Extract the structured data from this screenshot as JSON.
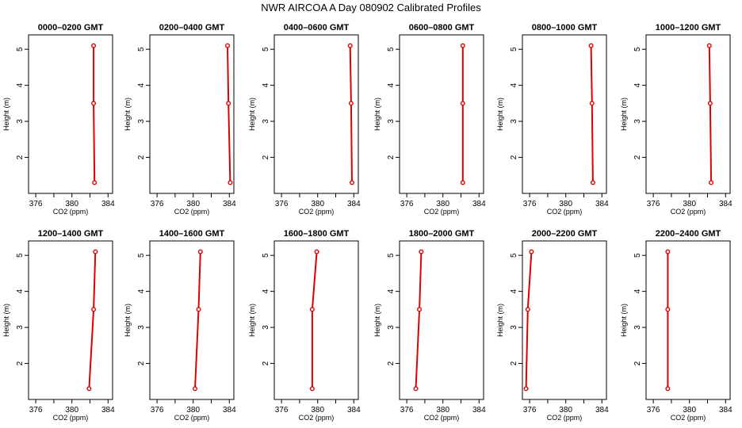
{
  "page": {
    "title": "NWR AIRCOA A  Day 080902  Calibrated Profiles"
  },
  "chart_data": [
    {
      "type": "line",
      "title": "0000–0200 GMT",
      "xlabel": "CO2 (ppm)",
      "ylabel": "Height (m)",
      "xlim": [
        375.2,
        384.5
      ],
      "ylim": [
        1.0,
        5.4
      ],
      "xticks": [
        376,
        380,
        384
      ],
      "yticks": [
        2,
        3,
        4,
        5
      ],
      "series": [
        {
          "x": [
            382.4,
            382.4,
            382.5
          ],
          "y": [
            5.1,
            3.5,
            1.3
          ]
        }
      ],
      "color": "#dd0000"
    },
    {
      "type": "line",
      "title": "0200–0400 GMT",
      "xlabel": "CO2 (ppm)",
      "ylabel": "Height (m)",
      "xlim": [
        375.2,
        384.5
      ],
      "ylim": [
        1.0,
        5.4
      ],
      "xticks": [
        376,
        380,
        384
      ],
      "yticks": [
        2,
        3,
        4,
        5
      ],
      "series": [
        {
          "x": [
            383.8,
            383.9,
            384.1
          ],
          "y": [
            5.1,
            3.5,
            1.3
          ]
        }
      ],
      "color": "#dd0000"
    },
    {
      "type": "line",
      "title": "0400–0600 GMT",
      "xlabel": "CO2 (ppm)",
      "ylabel": "Height (m)",
      "xlim": [
        375.2,
        384.5
      ],
      "ylim": [
        1.0,
        5.4
      ],
      "xticks": [
        376,
        380,
        384
      ],
      "yticks": [
        2,
        3,
        4,
        5
      ],
      "series": [
        {
          "x": [
            383.6,
            383.7,
            383.8
          ],
          "y": [
            5.1,
            3.5,
            1.3
          ]
        }
      ],
      "color": "#dd0000"
    },
    {
      "type": "line",
      "title": "0600–0800 GMT",
      "xlabel": "CO2 (ppm)",
      "ylabel": "Height (m)",
      "xlim": [
        375.2,
        384.5
      ],
      "ylim": [
        1.0,
        5.4
      ],
      "xticks": [
        376,
        380,
        384
      ],
      "yticks": [
        2,
        3,
        4,
        5
      ],
      "series": [
        {
          "x": [
            382.2,
            382.2,
            382.2
          ],
          "y": [
            5.1,
            3.5,
            1.3
          ]
        }
      ],
      "color": "#dd0000"
    },
    {
      "type": "line",
      "title": "0800–1000 GMT",
      "xlabel": "CO2 (ppm)",
      "ylabel": "Height (m)",
      "xlim": [
        375.2,
        384.5
      ],
      "ylim": [
        1.0,
        5.4
      ],
      "xticks": [
        376,
        380,
        384
      ],
      "yticks": [
        2,
        3,
        4,
        5
      ],
      "series": [
        {
          "x": [
            382.8,
            382.9,
            383.0
          ],
          "y": [
            5.1,
            3.5,
            1.3
          ]
        }
      ],
      "color": "#dd0000"
    },
    {
      "type": "line",
      "title": "1000–1200 GMT",
      "xlabel": "CO2 (ppm)",
      "ylabel": "Height (m)",
      "xlim": [
        375.2,
        384.5
      ],
      "ylim": [
        1.0,
        5.4
      ],
      "xticks": [
        376,
        380,
        384
      ],
      "yticks": [
        2,
        3,
        4,
        5
      ],
      "series": [
        {
          "x": [
            382.2,
            382.3,
            382.4
          ],
          "y": [
            5.1,
            3.5,
            1.3
          ]
        }
      ],
      "color": "#dd0000"
    },
    {
      "type": "line",
      "title": "1200–1400 GMT",
      "xlabel": "CO2 (ppm)",
      "ylabel": "Height (m)",
      "xlim": [
        375.2,
        384.5
      ],
      "ylim": [
        1.0,
        5.4
      ],
      "xticks": [
        376,
        380,
        384
      ],
      "yticks": [
        2,
        3,
        4,
        5
      ],
      "series": [
        {
          "x": [
            382.6,
            382.4,
            381.9
          ],
          "y": [
            5.1,
            3.5,
            1.3
          ]
        }
      ],
      "color": "#dd0000"
    },
    {
      "type": "line",
      "title": "1400–1600 GMT",
      "xlabel": "CO2 (ppm)",
      "ylabel": "Height (m)",
      "xlim": [
        375.2,
        384.5
      ],
      "ylim": [
        1.0,
        5.4
      ],
      "xticks": [
        376,
        380,
        384
      ],
      "yticks": [
        2,
        3,
        4,
        5
      ],
      "series": [
        {
          "x": [
            380.8,
            380.6,
            380.2
          ],
          "y": [
            5.1,
            3.5,
            1.3
          ]
        }
      ],
      "color": "#dd0000"
    },
    {
      "type": "line",
      "title": "1600–1800 GMT",
      "xlabel": "CO2 (ppm)",
      "ylabel": "Height (m)",
      "xlim": [
        375.2,
        384.5
      ],
      "ylim": [
        1.0,
        5.4
      ],
      "xticks": [
        376,
        380,
        384
      ],
      "yticks": [
        2,
        3,
        4,
        5
      ],
      "series": [
        {
          "x": [
            379.9,
            379.4,
            379.4
          ],
          "y": [
            5.1,
            3.5,
            1.3
          ]
        }
      ],
      "color": "#dd0000"
    },
    {
      "type": "line",
      "title": "1800–2000 GMT",
      "xlabel": "CO2 (ppm)",
      "ylabel": "Height (m)",
      "xlim": [
        375.2,
        384.5
      ],
      "ylim": [
        1.0,
        5.4
      ],
      "xticks": [
        376,
        380,
        384
      ],
      "yticks": [
        2,
        3,
        4,
        5
      ],
      "series": [
        {
          "x": [
            377.6,
            377.4,
            377.0
          ],
          "y": [
            5.1,
            3.5,
            1.3
          ]
        }
      ],
      "color": "#dd0000"
    },
    {
      "type": "line",
      "title": "2000–2200 GMT",
      "xlabel": "CO2 (ppm)",
      "ylabel": "Height (m)",
      "xlim": [
        375.2,
        384.5
      ],
      "ylim": [
        1.0,
        5.4
      ],
      "xticks": [
        376,
        380,
        384
      ],
      "yticks": [
        2,
        3,
        4,
        5
      ],
      "series": [
        {
          "x": [
            376.2,
            375.8,
            375.6
          ],
          "y": [
            5.1,
            3.5,
            1.3
          ]
        }
      ],
      "color": "#dd0000"
    },
    {
      "type": "line",
      "title": "2200–2400 GMT",
      "xlabel": "CO2 (ppm)",
      "ylabel": "Height (m)",
      "xlim": [
        375.2,
        384.5
      ],
      "ylim": [
        1.0,
        5.4
      ],
      "xticks": [
        376,
        380,
        384
      ],
      "yticks": [
        2,
        3,
        4,
        5
      ],
      "series": [
        {
          "x": [
            377.6,
            377.6,
            377.6
          ],
          "y": [
            5.1,
            3.5,
            1.3
          ]
        }
      ],
      "color": "#dd0000"
    }
  ]
}
